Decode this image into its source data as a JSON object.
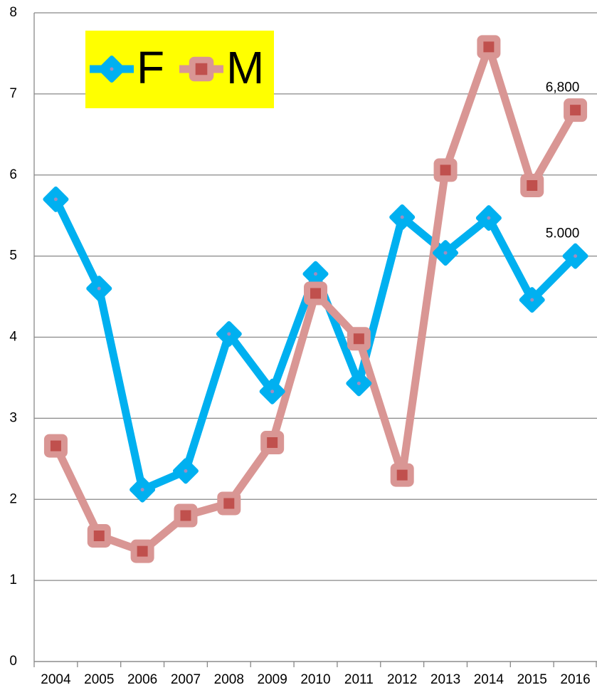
{
  "chart_data": {
    "type": "line",
    "categories": [
      "2004",
      "2005",
      "2006",
      "2007",
      "2008",
      "2009",
      "2010",
      "2011",
      "2012",
      "2013",
      "2014",
      "2015",
      "2016"
    ],
    "series": [
      {
        "name": "F",
        "color": "#00b0f0",
        "marker": "diamond",
        "values": [
          5.7,
          4.6,
          2.12,
          2.35,
          4.04,
          3.33,
          4.78,
          3.43,
          5.48,
          5.04,
          5.47,
          4.46,
          5.0
        ],
        "value_labels": [
          null,
          null,
          null,
          null,
          null,
          null,
          null,
          null,
          null,
          null,
          null,
          null,
          "5.000"
        ]
      },
      {
        "name": "M",
        "color": "#d99694",
        "marker_color": "#c0504d",
        "marker": "square",
        "values": [
          2.66,
          1.55,
          1.36,
          1.8,
          1.95,
          2.7,
          4.54,
          3.98,
          2.3,
          6.06,
          7.58,
          5.87,
          6.8
        ],
        "value_labels": [
          null,
          null,
          null,
          null,
          null,
          null,
          null,
          null,
          null,
          null,
          null,
          null,
          "6,800"
        ]
      }
    ],
    "ylim": [
      0,
      8
    ],
    "yticks": [
      0,
      1,
      2,
      3,
      4,
      5,
      6,
      7,
      8
    ],
    "grid": true,
    "legend": "upper left",
    "legend_background": "#ffff00"
  }
}
